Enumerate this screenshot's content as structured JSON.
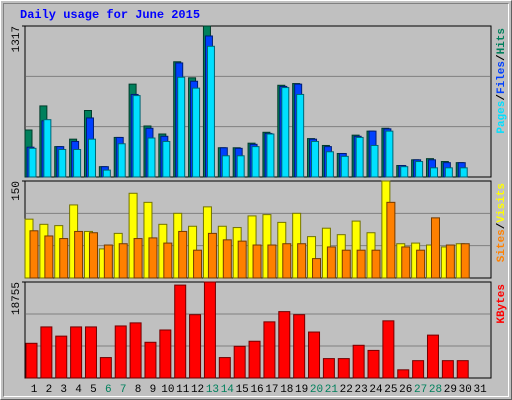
{
  "chart_data": {
    "type": "bar",
    "title": "Daily usage for June 2015",
    "categories": [
      "1",
      "2",
      "3",
      "4",
      "5",
      "6",
      "7",
      "8",
      "9",
      "10",
      "11",
      "12",
      "13",
      "14",
      "15",
      "16",
      "17",
      "18",
      "19",
      "20",
      "21",
      "22",
      "23",
      "24",
      "25",
      "26",
      "27",
      "28",
      "29",
      "30",
      "31"
    ],
    "category_colors": [
      "#000000",
      "#000000",
      "#000000",
      "#000000",
      "#000000",
      "#00805c",
      "#00805c",
      "#000000",
      "#000000",
      "#000000",
      "#000000",
      "#000000",
      "#00805c",
      "#00805c",
      "#000000",
      "#000000",
      "#000000",
      "#000000",
      "#000000",
      "#00805c",
      "#00805c",
      "#000000",
      "#000000",
      "#000000",
      "#000000",
      "#000000",
      "#00805c",
      "#00805c",
      "#000000",
      "#000000",
      "#000000"
    ],
    "legend_separator": "/",
    "panels": [
      {
        "ylim": [
          0,
          1317
        ],
        "yticks": [
          1317
        ],
        "series": [
          {
            "name": "Hits",
            "color": "#00805c",
            "values": [
              410,
              620,
              265,
              330,
              580,
              90,
              345,
              810,
              445,
              375,
              1005,
              865,
              1317,
              255,
              255,
              295,
              390,
              800,
              815,
              335,
              275,
              205,
              365,
              400,
              425,
              100,
              150,
              160,
              135,
              125,
              0
            ]
          },
          {
            "name": "Files",
            "color": "#0040ff",
            "values": [
              260,
              490,
              265,
              310,
              515,
              90,
              345,
              720,
              425,
              355,
              995,
              835,
              1230,
              255,
              250,
              285,
              380,
              790,
              810,
              330,
              265,
              205,
              355,
              400,
              420,
              100,
              150,
              150,
              125,
              125,
              0
            ]
          },
          {
            "name": "Pages",
            "color": "#00e0ff",
            "values": [
              250,
              500,
              240,
              240,
              330,
              60,
              290,
              710,
              340,
              310,
              870,
              775,
              1140,
              185,
              185,
              265,
              375,
              780,
              720,
              310,
              220,
              180,
              345,
              275,
              400,
              90,
              135,
              80,
              80,
              80,
              0
            ]
          }
        ]
      },
      {
        "ylim": [
          0,
          150
        ],
        "yticks": [
          150
        ],
        "series": [
          {
            "name": "Visits",
            "color": "#ffff00",
            "values": [
              91,
              83,
              81,
              113,
              72,
              45,
              69,
              131,
              117,
              83,
              100,
              80,
              110,
              80,
              78,
              96,
              98,
              86,
              100,
              64,
              77,
              67,
              88,
              70,
              150,
              53,
              54,
              51,
              48,
              53,
              0
            ]
          },
          {
            "name": "Sites",
            "color": "#ff8000",
            "values": [
              73,
              65,
              61,
              72,
              70,
              51,
              53,
              61,
              62,
              54,
              72,
              43,
              69,
              59,
              57,
              51,
              51,
              53,
              53,
              30,
              48,
              43,
              43,
              43,
              117,
              48,
              43,
              93,
              51,
              53,
              0
            ]
          }
        ]
      },
      {
        "ylim": [
          0,
          18755
        ],
        "yticks": [
          18755
        ],
        "series": [
          {
            "name": "KBytes",
            "color": "#ff0000",
            "values": [
              6780,
              9980,
              8180,
              9980,
              9980,
              3990,
              10170,
              10770,
              6980,
              9380,
              18150,
              12370,
              18755,
              3990,
              6190,
              7180,
              10970,
              12970,
              12370,
              8980,
              3790,
              3790,
              6390,
              5390,
              11170,
              1600,
              3390,
              8380,
              3390,
              3390,
              0
            ]
          }
        ]
      }
    ]
  }
}
